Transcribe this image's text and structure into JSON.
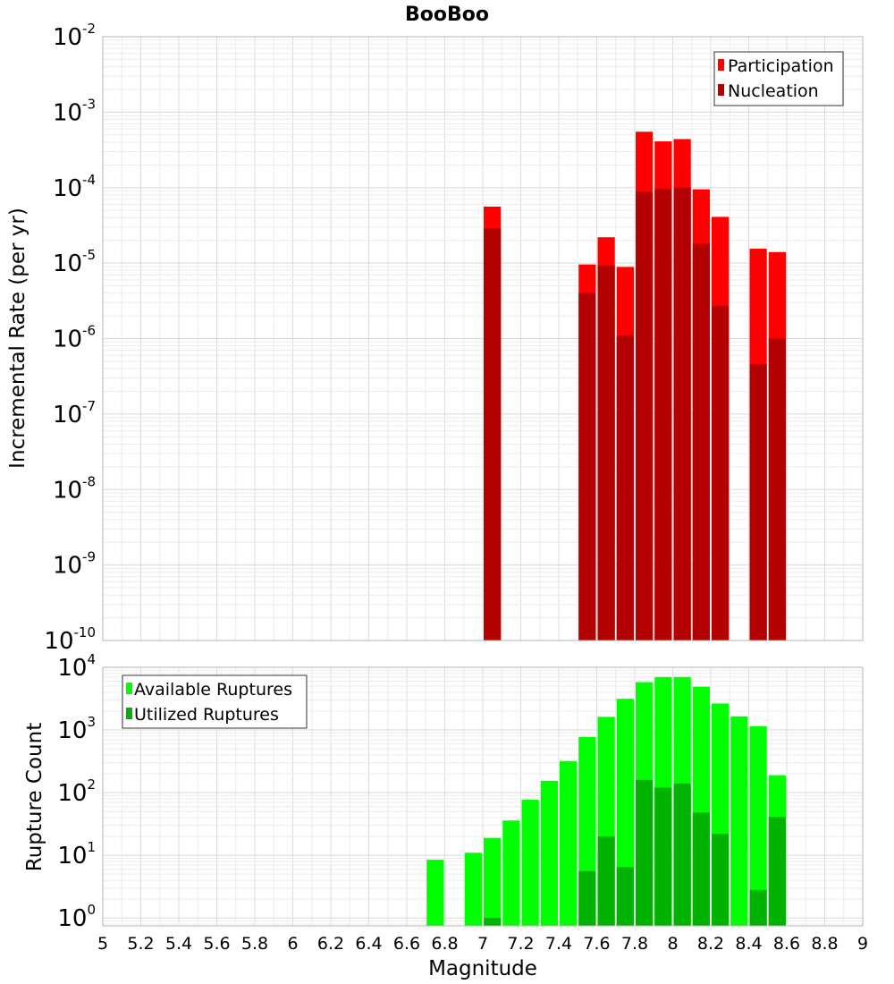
{
  "chart_data": [
    {
      "type": "bar",
      "title": "BooBoo",
      "xlabel": "",
      "ylabel": "Incremental Rate (per yr)",
      "yscale": "log",
      "xlim": [
        5,
        9
      ],
      "ylim": [
        1e-10,
        0.01
      ],
      "ytick_exponents": [
        -10,
        -9,
        -8,
        -7,
        -6,
        -5,
        -4,
        -3,
        -2
      ],
      "grid": true,
      "legend_position": "top-right",
      "bin_width": 0.1,
      "series": [
        {
          "name": "Participation",
          "color": "#ff0000",
          "points": [
            [
              7.05,
              5.6e-05
            ],
            [
              7.55,
              9.6e-06
            ],
            [
              7.65,
              2.2e-05
            ],
            [
              7.75,
              8.9e-06
            ],
            [
              7.85,
              0.00055
            ],
            [
              7.95,
              0.00041
            ],
            [
              8.05,
              0.00044
            ],
            [
              8.15,
              9.5e-05
            ],
            [
              8.25,
              4.1e-05
            ],
            [
              8.45,
              1.55e-05
            ],
            [
              8.55,
              1.4e-05
            ]
          ]
        },
        {
          "name": "Nucleation",
          "color": "#b30000",
          "points": [
            [
              7.05,
              2.9e-05
            ],
            [
              7.55,
              4e-06
            ],
            [
              7.65,
              9.3e-06
            ],
            [
              7.75,
              1.1e-06
            ],
            [
              7.85,
              8.8e-05
            ],
            [
              7.95,
              9.6e-05
            ],
            [
              8.05,
              0.0001
            ],
            [
              8.15,
              1.8e-05
            ],
            [
              8.25,
              2.7e-06
            ],
            [
              8.45,
              4.6e-07
            ],
            [
              8.55,
              1e-06
            ]
          ]
        }
      ]
    },
    {
      "type": "bar",
      "title": "",
      "xlabel": "Magnitude",
      "ylabel": "Rupture Count",
      "yscale": "log",
      "xlim": [
        5,
        9
      ],
      "ylim": [
        0.75,
        10000.0
      ],
      "ytick_exponents": [
        0,
        1,
        2,
        3,
        4
      ],
      "xticks": [
        "5",
        "5.2",
        "5.4",
        "5.6",
        "5.8",
        "6",
        "6.2",
        "6.4",
        "6.6",
        "6.8",
        "7",
        "7.2",
        "7.4",
        "7.6",
        "7.8",
        "8",
        "8.2",
        "8.4",
        "8.6",
        "8.8",
        "9"
      ],
      "grid": true,
      "legend_position": "top-left",
      "bin_width": 0.1,
      "series": [
        {
          "name": "Available Ruptures",
          "color": "#00ff00",
          "points": [
            [
              6.75,
              8.5
            ],
            [
              6.95,
              11
            ],
            [
              7.05,
              19
            ],
            [
              7.15,
              36
            ],
            [
              7.25,
              77
            ],
            [
              7.35,
              155
            ],
            [
              7.45,
              320
            ],
            [
              7.55,
              770
            ],
            [
              7.65,
              1620
            ],
            [
              7.75,
              3150
            ],
            [
              7.85,
              5800
            ],
            [
              7.95,
              7000
            ],
            [
              8.05,
              7000
            ],
            [
              8.15,
              4900
            ],
            [
              8.25,
              2650
            ],
            [
              8.35,
              1650
            ],
            [
              8.45,
              1150
            ],
            [
              8.55,
              190
            ]
          ]
        },
        {
          "name": "Utilized Ruptures",
          "color": "#00b300",
          "points": [
            [
              7.05,
              1
            ],
            [
              7.55,
              5.6
            ],
            [
              7.65,
              20
            ],
            [
              7.75,
              6.5
            ],
            [
              7.85,
              160
            ],
            [
              7.95,
              120
            ],
            [
              8.05,
              140
            ],
            [
              8.15,
              48
            ],
            [
              8.25,
              22
            ],
            [
              8.45,
              2.8
            ],
            [
              8.55,
              41
            ]
          ]
        }
      ]
    }
  ]
}
